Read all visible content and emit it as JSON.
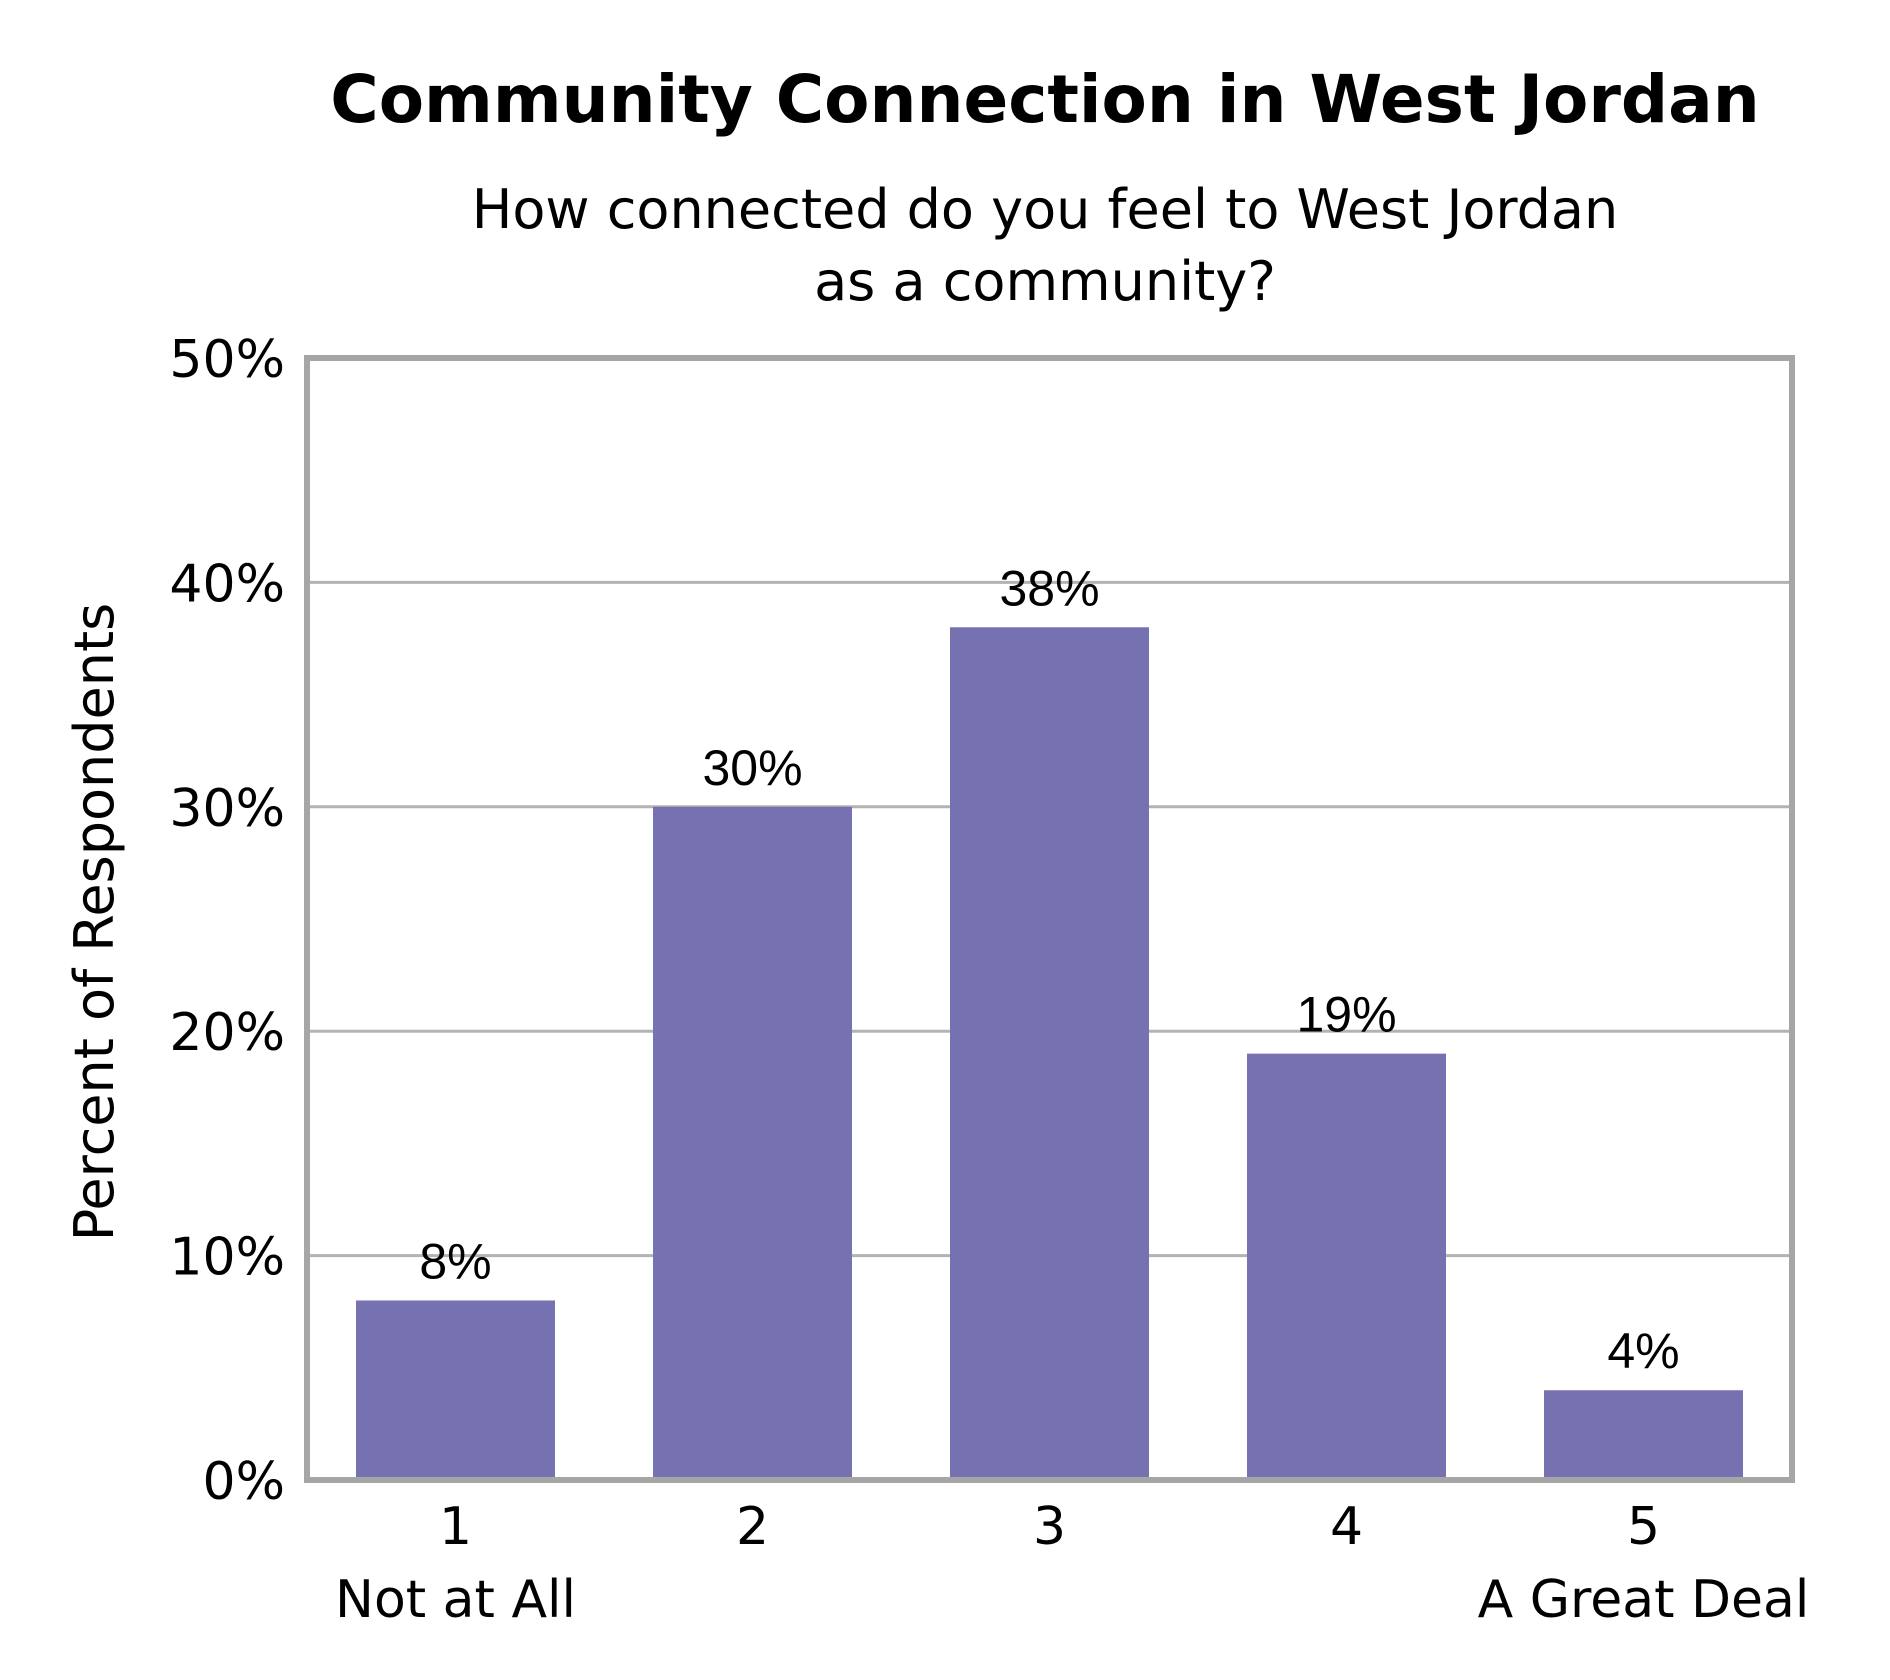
{
  "chart_data": {
    "type": "bar",
    "title": "Community Connection in West Jordan",
    "subtitle": [
      "How connected do you feel to West Jordan",
      "as a community?"
    ],
    "ylabel": "Percent of Respondents",
    "xlabel": "",
    "categories": [
      "1",
      "2",
      "3",
      "4",
      "5"
    ],
    "category_sublabels": [
      "Not at All",
      "",
      "",
      "",
      "A Great Deal"
    ],
    "values": [
      8,
      30,
      38,
      19,
      4
    ],
    "value_labels": [
      "8%",
      "30%",
      "38%",
      "19%",
      "4%"
    ],
    "ylim": [
      0,
      50
    ],
    "yticks": [
      0,
      10,
      20,
      30,
      40,
      50
    ],
    "ytick_labels": [
      "0%",
      "10%",
      "20%",
      "30%",
      "40%",
      "50%"
    ],
    "grid": true,
    "legend": "none",
    "bar_color": "#7672b1",
    "grid_color": "#b3b3b3",
    "frame_color": "#a6a6a6"
  }
}
